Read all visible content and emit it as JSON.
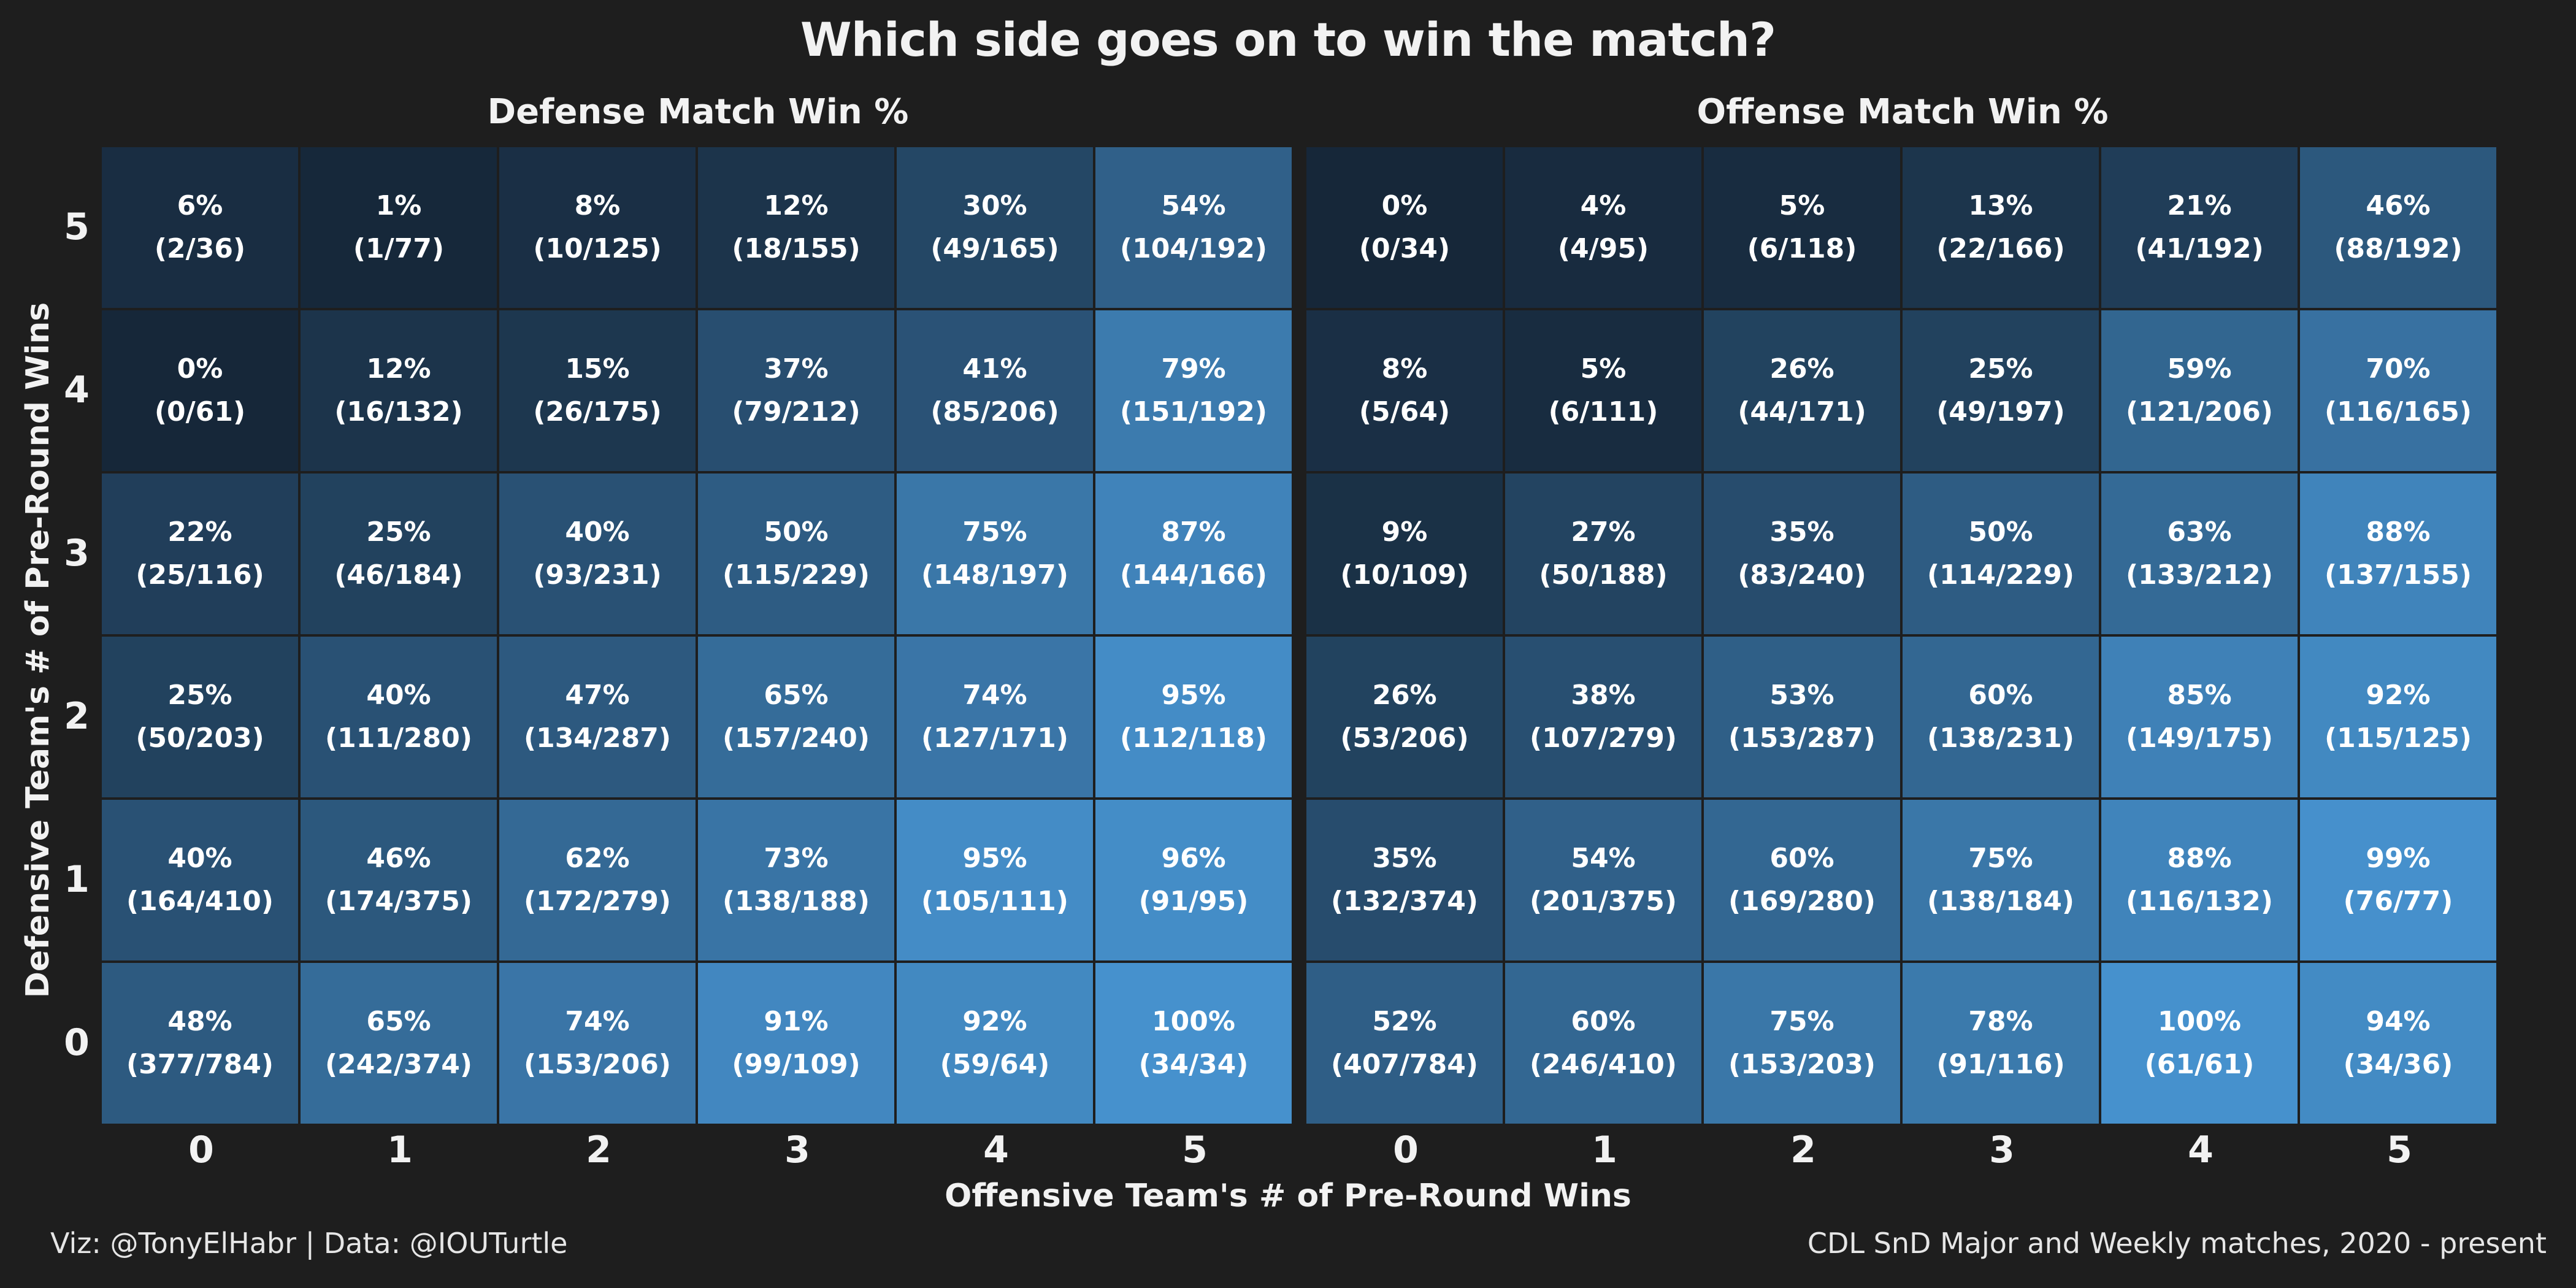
{
  "chart_data": {
    "type": "heatmap",
    "title": "Which side goes on to win the match?",
    "xlabel": "Offensive Team's # of Pre-Round Wins",
    "ylabel": "Defensive Team's # of Pre-Round Wins",
    "x_ticks": [
      "0",
      "1",
      "2",
      "3",
      "4",
      "5"
    ],
    "y_ticks": [
      "5",
      "4",
      "3",
      "2",
      "1",
      "0"
    ],
    "caption_left": "Viz: @TonyElHabr | Data: @IOUTurtle",
    "caption_right": "CDL SnD Major and Weekly matches, 2020 - present",
    "color_scale": {
      "low": "#162739",
      "high": "#4691cd"
    },
    "panels": [
      {
        "name": "Defense Match Win %",
        "rows": [
          {
            "y": 5,
            "cells": [
              {
                "x": 0,
                "pct": "6%",
                "count": "(2/36)",
                "value": 6
              },
              {
                "x": 1,
                "pct": "1%",
                "count": "(1/77)",
                "value": 1
              },
              {
                "x": 2,
                "pct": "8%",
                "count": "(10/125)",
                "value": 8
              },
              {
                "x": 3,
                "pct": "12%",
                "count": "(18/155)",
                "value": 12
              },
              {
                "x": 4,
                "pct": "30%",
                "count": "(49/165)",
                "value": 30
              },
              {
                "x": 5,
                "pct": "54%",
                "count": "(104/192)",
                "value": 54
              }
            ]
          },
          {
            "y": 4,
            "cells": [
              {
                "x": 0,
                "pct": "0%",
                "count": "(0/61)",
                "value": 0
              },
              {
                "x": 1,
                "pct": "12%",
                "count": "(16/132)",
                "value": 12
              },
              {
                "x": 2,
                "pct": "15%",
                "count": "(26/175)",
                "value": 15
              },
              {
                "x": 3,
                "pct": "37%",
                "count": "(79/212)",
                "value": 37
              },
              {
                "x": 4,
                "pct": "41%",
                "count": "(85/206)",
                "value": 41
              },
              {
                "x": 5,
                "pct": "79%",
                "count": "(151/192)",
                "value": 79
              }
            ]
          },
          {
            "y": 3,
            "cells": [
              {
                "x": 0,
                "pct": "22%",
                "count": "(25/116)",
                "value": 22
              },
              {
                "x": 1,
                "pct": "25%",
                "count": "(46/184)",
                "value": 25
              },
              {
                "x": 2,
                "pct": "40%",
                "count": "(93/231)",
                "value": 40
              },
              {
                "x": 3,
                "pct": "50%",
                "count": "(115/229)",
                "value": 50
              },
              {
                "x": 4,
                "pct": "75%",
                "count": "(148/197)",
                "value": 75
              },
              {
                "x": 5,
                "pct": "87%",
                "count": "(144/166)",
                "value": 87
              }
            ]
          },
          {
            "y": 2,
            "cells": [
              {
                "x": 0,
                "pct": "25%",
                "count": "(50/203)",
                "value": 25
              },
              {
                "x": 1,
                "pct": "40%",
                "count": "(111/280)",
                "value": 40
              },
              {
                "x": 2,
                "pct": "47%",
                "count": "(134/287)",
                "value": 47
              },
              {
                "x": 3,
                "pct": "65%",
                "count": "(157/240)",
                "value": 65
              },
              {
                "x": 4,
                "pct": "74%",
                "count": "(127/171)",
                "value": 74
              },
              {
                "x": 5,
                "pct": "95%",
                "count": "(112/118)",
                "value": 95
              }
            ]
          },
          {
            "y": 1,
            "cells": [
              {
                "x": 0,
                "pct": "40%",
                "count": "(164/410)",
                "value": 40
              },
              {
                "x": 1,
                "pct": "46%",
                "count": "(174/375)",
                "value": 46
              },
              {
                "x": 2,
                "pct": "62%",
                "count": "(172/279)",
                "value": 62
              },
              {
                "x": 3,
                "pct": "73%",
                "count": "(138/188)",
                "value": 73
              },
              {
                "x": 4,
                "pct": "95%",
                "count": "(105/111)",
                "value": 95
              },
              {
                "x": 5,
                "pct": "96%",
                "count": "(91/95)",
                "value": 96
              }
            ]
          },
          {
            "y": 0,
            "cells": [
              {
                "x": 0,
                "pct": "48%",
                "count": "(377/784)",
                "value": 48
              },
              {
                "x": 1,
                "pct": "65%",
                "count": "(242/374)",
                "value": 65
              },
              {
                "x": 2,
                "pct": "74%",
                "count": "(153/206)",
                "value": 74
              },
              {
                "x": 3,
                "pct": "91%",
                "count": "(99/109)",
                "value": 91
              },
              {
                "x": 4,
                "pct": "92%",
                "count": "(59/64)",
                "value": 92
              },
              {
                "x": 5,
                "pct": "100%",
                "count": "(34/34)",
                "value": 100
              }
            ]
          }
        ]
      },
      {
        "name": "Offense Match Win %",
        "rows": [
          {
            "y": 5,
            "cells": [
              {
                "x": 0,
                "pct": "0%",
                "count": "(0/34)",
                "value": 0
              },
              {
                "x": 1,
                "pct": "4%",
                "count": "(4/95)",
                "value": 4
              },
              {
                "x": 2,
                "pct": "5%",
                "count": "(6/118)",
                "value": 5
              },
              {
                "x": 3,
                "pct": "13%",
                "count": "(22/166)",
                "value": 13
              },
              {
                "x": 4,
                "pct": "21%",
                "count": "(41/192)",
                "value": 21
              },
              {
                "x": 5,
                "pct": "46%",
                "count": "(88/192)",
                "value": 46
              }
            ]
          },
          {
            "y": 4,
            "cells": [
              {
                "x": 0,
                "pct": "8%",
                "count": "(5/64)",
                "value": 8
              },
              {
                "x": 1,
                "pct": "5%",
                "count": "(6/111)",
                "value": 5
              },
              {
                "x": 2,
                "pct": "26%",
                "count": "(44/171)",
                "value": 26
              },
              {
                "x": 3,
                "pct": "25%",
                "count": "(49/197)",
                "value": 25
              },
              {
                "x": 4,
                "pct": "59%",
                "count": "(121/206)",
                "value": 59
              },
              {
                "x": 5,
                "pct": "70%",
                "count": "(116/165)",
                "value": 70
              }
            ]
          },
          {
            "y": 3,
            "cells": [
              {
                "x": 0,
                "pct": "9%",
                "count": "(10/109)",
                "value": 9
              },
              {
                "x": 1,
                "pct": "27%",
                "count": "(50/188)",
                "value": 27
              },
              {
                "x": 2,
                "pct": "35%",
                "count": "(83/240)",
                "value": 35
              },
              {
                "x": 3,
                "pct": "50%",
                "count": "(114/229)",
                "value": 50
              },
              {
                "x": 4,
                "pct": "63%",
                "count": "(133/212)",
                "value": 63
              },
              {
                "x": 5,
                "pct": "88%",
                "count": "(137/155)",
                "value": 88
              }
            ]
          },
          {
            "y": 2,
            "cells": [
              {
                "x": 0,
                "pct": "26%",
                "count": "(53/206)",
                "value": 26
              },
              {
                "x": 1,
                "pct": "38%",
                "count": "(107/279)",
                "value": 38
              },
              {
                "x": 2,
                "pct": "53%",
                "count": "(153/287)",
                "value": 53
              },
              {
                "x": 3,
                "pct": "60%",
                "count": "(138/231)",
                "value": 60
              },
              {
                "x": 4,
                "pct": "85%",
                "count": "(149/175)",
                "value": 85
              },
              {
                "x": 5,
                "pct": "92%",
                "count": "(115/125)",
                "value": 92
              }
            ]
          },
          {
            "y": 1,
            "cells": [
              {
                "x": 0,
                "pct": "35%",
                "count": "(132/374)",
                "value": 35
              },
              {
                "x": 1,
                "pct": "54%",
                "count": "(201/375)",
                "value": 54
              },
              {
                "x": 2,
                "pct": "60%",
                "count": "(169/280)",
                "value": 60
              },
              {
                "x": 3,
                "pct": "75%",
                "count": "(138/184)",
                "value": 75
              },
              {
                "x": 4,
                "pct": "88%",
                "count": "(116/132)",
                "value": 88
              },
              {
                "x": 5,
                "pct": "99%",
                "count": "(76/77)",
                "value": 99
              }
            ]
          },
          {
            "y": 0,
            "cells": [
              {
                "x": 0,
                "pct": "52%",
                "count": "(407/784)",
                "value": 52
              },
              {
                "x": 1,
                "pct": "60%",
                "count": "(246/410)",
                "value": 60
              },
              {
                "x": 2,
                "pct": "75%",
                "count": "(153/203)",
                "value": 75
              },
              {
                "x": 3,
                "pct": "78%",
                "count": "(91/116)",
                "value": 78
              },
              {
                "x": 4,
                "pct": "100%",
                "count": "(61/61)",
                "value": 100
              },
              {
                "x": 5,
                "pct": "94%",
                "count": "(34/36)",
                "value": 94
              }
            ]
          }
        ]
      }
    ]
  }
}
